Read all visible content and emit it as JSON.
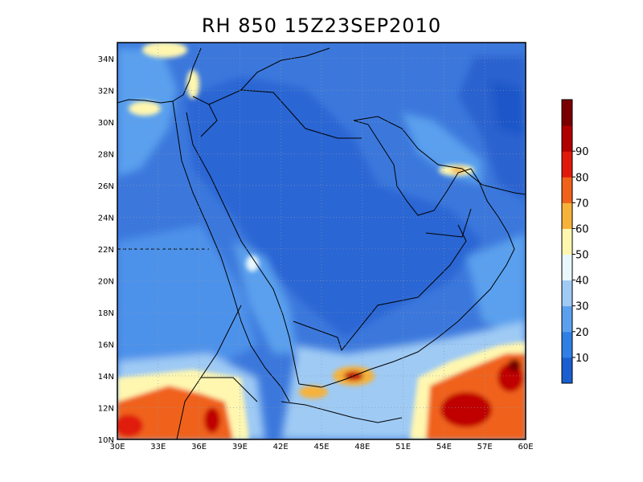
{
  "title": "RH 850 15Z23SEP2010",
  "map": {
    "lon_range": [
      30,
      60
    ],
    "lat_range": [
      10,
      35
    ],
    "lon_ticks": [
      "30E",
      "33E",
      "36E",
      "39E",
      "42E",
      "45E",
      "48E",
      "51E",
      "54E",
      "57E",
      "60E"
    ],
    "lat_ticks": [
      "10N",
      "12N",
      "14N",
      "16N",
      "18N",
      "20N",
      "22N",
      "24N",
      "26N",
      "28N",
      "30N",
      "32N",
      "34N"
    ],
    "grid": "dotted"
  },
  "colorbar": {
    "labels": [
      "10",
      "20",
      "30",
      "40",
      "50",
      "60",
      "70",
      "80",
      "90"
    ],
    "colors": [
      "#1a5fd0",
      "#2f7fe6",
      "#5aa0ee",
      "#9fcaf4",
      "#e8f8fc",
      "#fff7b0",
      "#f6b23a",
      "#f0621a",
      "#e01a0a",
      "#b00000",
      "#7a0000"
    ]
  },
  "colors": {
    "background": "#3c78dc",
    "dry_interior": "#2c66d4",
    "moist_south": "#e8441a"
  }
}
